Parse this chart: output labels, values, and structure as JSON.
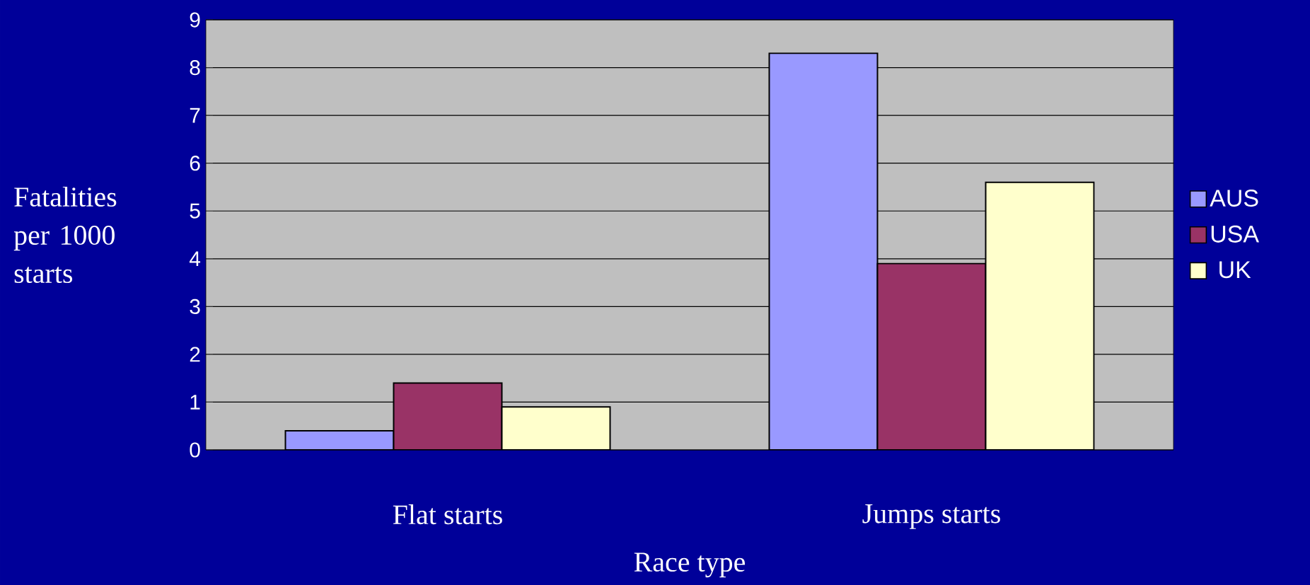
{
  "chart_data": {
    "type": "bar",
    "xlabel": "Race type",
    "ylabel": "Fatalities per 1000 starts",
    "categories": [
      "Flat starts",
      "Jumps starts"
    ],
    "series": [
      {
        "name": "AUS",
        "color": "#9999ff",
        "values": [
          0.4,
          8.3
        ]
      },
      {
        "name": "USA",
        "color": "#993366",
        "values": [
          1.4,
          3.9
        ]
      },
      {
        "name": "UK",
        "color": "#ffffcc",
        "values": [
          0.9,
          5.6
        ]
      }
    ],
    "ylim": [
      0,
      9
    ],
    "yticks": [
      0,
      1,
      2,
      3,
      4,
      5,
      6,
      7,
      8,
      9
    ],
    "grid": "y",
    "legend": "right"
  }
}
